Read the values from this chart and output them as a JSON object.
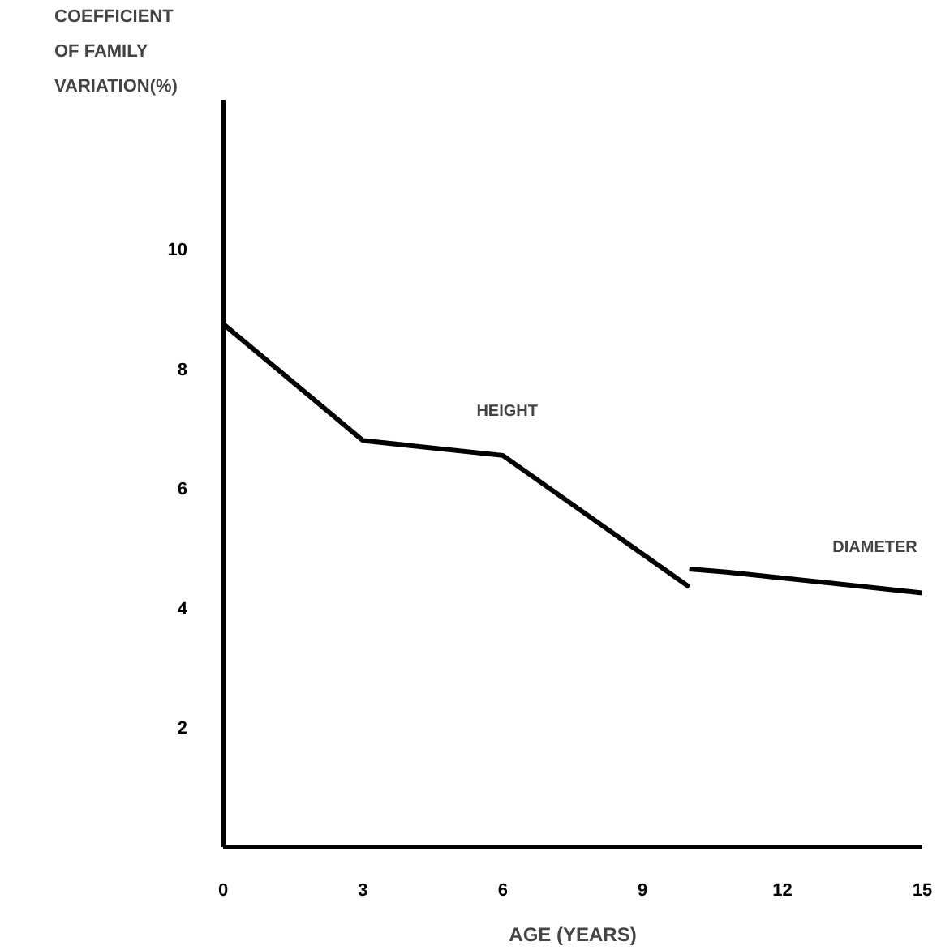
{
  "chart_data": {
    "type": "line",
    "xlabel": "AGE (YEARS)",
    "ylabel": "COEFFICIENT OF FAMILY VARIATION(%)",
    "xlim": [
      0,
      15
    ],
    "ylim": [
      0,
      12.5
    ],
    "xticks": [
      0,
      3,
      6,
      9,
      12,
      15
    ],
    "yticks": [
      2,
      4,
      6,
      8,
      10
    ],
    "grid": false,
    "legend": false,
    "series": [
      {
        "name": "HEIGHT",
        "color": "#000000",
        "x": [
          0,
          3,
          6,
          10
        ],
        "values": [
          8.75,
          6.8,
          6.55,
          4.35
        ]
      },
      {
        "name": "DIAMETER",
        "color": "#000000",
        "x": [
          10,
          10.8,
          15
        ],
        "values": [
          4.65,
          4.6,
          4.25
        ]
      }
    ]
  }
}
